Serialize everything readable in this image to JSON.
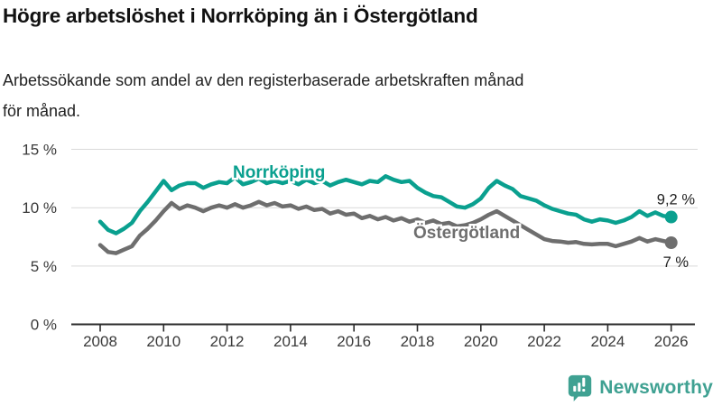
{
  "header": {
    "title": "Högre arbetslöshet i Norrköping än i Östergötland",
    "subtitle_lines": [
      "Arbetssökande som andel av den registerbaserade arbetskraften månad",
      "för månad."
    ]
  },
  "chart_data": {
    "type": "line",
    "title": "Högre arbetslöshet i Norrköping än i Östergötland",
    "subtitle": "Arbetssökande som andel av den registerbaserade arbetskraften månad för månad.",
    "xlabel": "",
    "ylabel": "",
    "xlim": [
      2008,
      2026
    ],
    "ylim": [
      0,
      15
    ],
    "grid": true,
    "grid_color": "#d9d9d9",
    "axis_color": "#2b2b2b",
    "tick_label_color": "#3a3a3a",
    "legend": "inline-labels",
    "x_tick_labels": [
      "2008",
      "2010",
      "2012",
      "2014",
      "2016",
      "2018",
      "2020",
      "2022",
      "2024",
      "2026"
    ],
    "y_ticks": [
      {
        "value": 15,
        "label": "15 %"
      },
      {
        "value": 10,
        "label": "10 %"
      },
      {
        "value": 5,
        "label": "5 %"
      },
      {
        "value": 0,
        "label": "0 %"
      }
    ],
    "x": [
      2008.0,
      2008.25,
      2008.5,
      2008.75,
      2009.0,
      2009.25,
      2009.5,
      2009.75,
      2010.0,
      2010.25,
      2010.5,
      2010.75,
      2011.0,
      2011.25,
      2011.5,
      2011.75,
      2012.0,
      2012.25,
      2012.5,
      2012.75,
      2013.0,
      2013.25,
      2013.5,
      2013.75,
      2014.0,
      2014.25,
      2014.5,
      2014.75,
      2015.0,
      2015.25,
      2015.5,
      2015.75,
      2016.0,
      2016.25,
      2016.5,
      2016.75,
      2017.0,
      2017.25,
      2017.5,
      2017.75,
      2018.0,
      2018.25,
      2018.5,
      2018.75,
      2019.0,
      2019.25,
      2019.5,
      2019.75,
      2020.0,
      2020.25,
      2020.5,
      2020.75,
      2021.0,
      2021.25,
      2021.5,
      2021.75,
      2022.0,
      2022.25,
      2022.5,
      2022.75,
      2023.0,
      2023.25,
      2023.5,
      2023.75,
      2024.0,
      2024.25,
      2024.5,
      2024.75,
      2025.0,
      2025.25,
      2025.5,
      2025.75,
      2026.0
    ],
    "series": [
      {
        "name": "Norrköping",
        "color": "#0aa08f",
        "end_label": "9,2 %",
        "end_value": 9.2,
        "values": [
          8.8,
          8.1,
          7.8,
          8.2,
          8.7,
          9.7,
          10.5,
          11.4,
          12.3,
          11.5,
          11.9,
          12.1,
          12.1,
          11.7,
          12.0,
          12.2,
          12.1,
          12.6,
          12.0,
          12.2,
          12.5,
          12.1,
          12.3,
          12.1,
          12.3,
          12.0,
          12.4,
          12.1,
          12.3,
          11.9,
          12.2,
          12.4,
          12.2,
          12.0,
          12.3,
          12.2,
          12.7,
          12.4,
          12.2,
          12.3,
          11.7,
          11.3,
          11.0,
          10.9,
          10.5,
          10.1,
          10.0,
          10.3,
          10.8,
          11.7,
          12.3,
          11.9,
          11.6,
          11.0,
          10.8,
          10.6,
          10.2,
          9.9,
          9.7,
          9.5,
          9.4,
          9.0,
          8.8,
          9.0,
          8.9,
          8.7,
          8.9,
          9.2,
          9.7,
          9.3,
          9.6,
          9.3,
          9.2
        ]
      },
      {
        "name": "Östergötland",
        "color": "#6e6e6e",
        "end_label": "7 %",
        "end_value": 7.0,
        "values": [
          6.8,
          6.2,
          6.1,
          6.4,
          6.7,
          7.6,
          8.2,
          8.9,
          9.7,
          10.4,
          9.9,
          10.2,
          10.0,
          9.7,
          10.0,
          10.2,
          10.0,
          10.3,
          10.0,
          10.2,
          10.5,
          10.2,
          10.4,
          10.1,
          10.2,
          9.9,
          10.1,
          9.8,
          9.9,
          9.5,
          9.7,
          9.4,
          9.5,
          9.1,
          9.3,
          9.0,
          9.2,
          8.9,
          9.1,
          8.8,
          9.0,
          8.7,
          8.9,
          8.6,
          8.7,
          8.4,
          8.5,
          8.7,
          9.0,
          9.4,
          9.7,
          9.3,
          8.9,
          8.5,
          8.1,
          7.7,
          7.3,
          7.15,
          7.1,
          7.0,
          7.05,
          6.9,
          6.85,
          6.9,
          6.9,
          6.7,
          6.9,
          7.1,
          7.4,
          7.1,
          7.3,
          7.15,
          7.0
        ]
      }
    ]
  },
  "logo": {
    "text": "Newsworthy",
    "color": "#3fa192",
    "icon": "newsworthy-speech-bubble-bar-chart-icon"
  }
}
